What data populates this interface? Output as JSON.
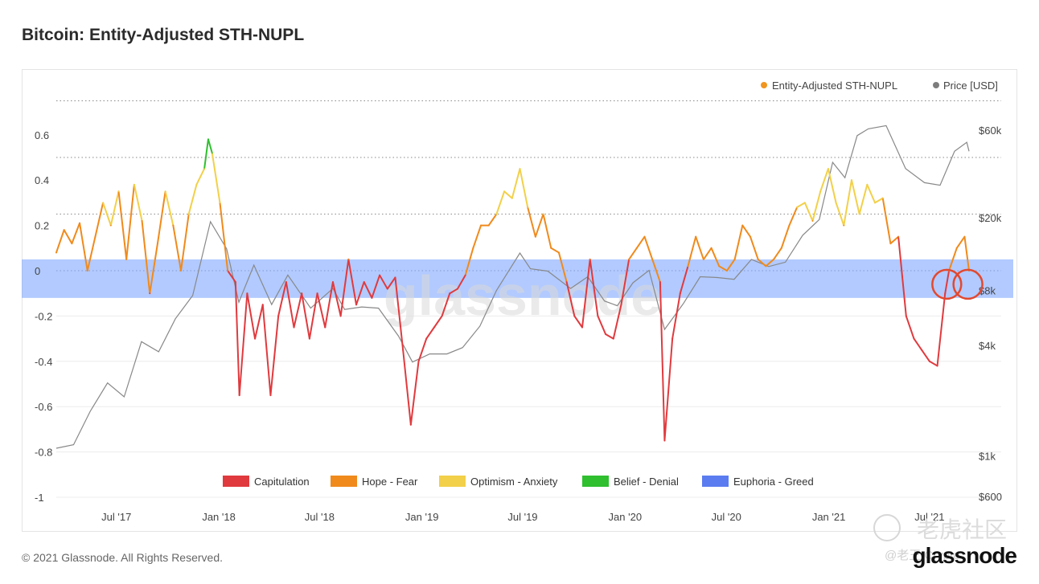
{
  "header": {
    "title": "Bitcoin: Entity-Adjusted STH-NUPL"
  },
  "footer": {
    "copyright": "© 2021 Glassnode. All Rights Reserved.",
    "brand": "glassnode"
  },
  "watermark": {
    "text": "glassnode",
    "overlay_cn": "老虎社区",
    "overlay_handle": "@老王 Crypto"
  },
  "colors": {
    "capitulation": "#e03a3e",
    "hope_fear": "#f08a1c",
    "optimism_anxiety": "#f2d049",
    "belief_denial": "#2fbf2f",
    "euphoria_band": "#7ea6ff",
    "price": "#888888",
    "legend_nupl_dot": "#f0951f",
    "legend_price_dot": "#7d7d7d",
    "annotation_circle": "#e2492f"
  },
  "chart_data": {
    "type": "line",
    "title": "Bitcoin: Entity-Adjusted STH-NUPL",
    "x_ticks": [
      "Jul '17",
      "Jan '18",
      "Jul '18",
      "Jan '19",
      "Jul '19",
      "Jan '20",
      "Jul '20",
      "Jan '21",
      "Jul '21"
    ],
    "y_left": {
      "ticks": [
        "0.6",
        "0.4",
        "0.2",
        "0",
        "-0.2",
        "-0.4",
        "-0.6",
        "-0.8",
        "-1"
      ],
      "range": [
        -1,
        0.7
      ]
    },
    "y_right": {
      "ticks": [
        "$60k",
        "$20k",
        "$8k",
        "$4k",
        "$1k",
        "$600"
      ],
      "scale": "log"
    },
    "top_legend": [
      {
        "label": "Entity-Adjusted STH-NUPL",
        "color": "#f0951f"
      },
      {
        "label": "Price [USD]",
        "color": "#7d7d7d"
      }
    ],
    "zone_legend": [
      {
        "label": "Capitulation",
        "color": "#e03a3e"
      },
      {
        "label": "Hope - Fear",
        "color": "#f08a1c"
      },
      {
        "label": "Optimism - Anxiety",
        "color": "#f2d049"
      },
      {
        "label": "Belief - Denial",
        "color": "#2fbf2f"
      },
      {
        "label": "Euphoria - Greed",
        "color": "#5b7cf0"
      }
    ],
    "zones": [
      {
        "name": "Capitulation",
        "from": -1,
        "to": 0
      },
      {
        "name": "Hope - Fear",
        "from": 0,
        "to": 0.25
      },
      {
        "name": "Optimism - Anxiety",
        "from": 0.25,
        "to": 0.5
      },
      {
        "name": "Belief - Denial",
        "from": 0.5,
        "to": 0.75
      }
    ],
    "euphoria_band": [
      -0.12,
      0.05
    ],
    "x_range": [
      "2017-03-15",
      "2021-09-10"
    ],
    "series": [
      {
        "name": "Entity-Adjusted STH-NUPL",
        "points": [
          [
            "2017-03-15",
            0.08
          ],
          [
            "2017-03-29",
            0.18
          ],
          [
            "2017-04-12",
            0.12
          ],
          [
            "2017-04-26",
            0.21
          ],
          [
            "2017-05-10",
            0.0
          ],
          [
            "2017-05-24",
            0.15
          ],
          [
            "2017-06-07",
            0.3
          ],
          [
            "2017-06-21",
            0.2
          ],
          [
            "2017-07-05",
            0.35
          ],
          [
            "2017-07-19",
            0.05
          ],
          [
            "2017-08-02",
            0.38
          ],
          [
            "2017-08-16",
            0.22
          ],
          [
            "2017-08-30",
            -0.1
          ],
          [
            "2017-09-13",
            0.12
          ],
          [
            "2017-09-27",
            0.35
          ],
          [
            "2017-10-11",
            0.2
          ],
          [
            "2017-10-25",
            0.0
          ],
          [
            "2017-11-08",
            0.25
          ],
          [
            "2017-11-22",
            0.38
          ],
          [
            "2017-12-06",
            0.45
          ],
          [
            "2017-12-13",
            0.58
          ],
          [
            "2017-12-20",
            0.52
          ],
          [
            "2018-01-03",
            0.3
          ],
          [
            "2018-01-17",
            0.0
          ],
          [
            "2018-01-31",
            -0.05
          ],
          [
            "2018-02-07",
            -0.55
          ],
          [
            "2018-02-21",
            -0.1
          ],
          [
            "2018-03-07",
            -0.3
          ],
          [
            "2018-03-21",
            -0.15
          ],
          [
            "2018-04-04",
            -0.55
          ],
          [
            "2018-04-18",
            -0.2
          ],
          [
            "2018-05-02",
            -0.05
          ],
          [
            "2018-05-16",
            -0.25
          ],
          [
            "2018-05-30",
            -0.1
          ],
          [
            "2018-06-13",
            -0.3
          ],
          [
            "2018-06-27",
            -0.1
          ],
          [
            "2018-07-11",
            -0.25
          ],
          [
            "2018-07-25",
            -0.05
          ],
          [
            "2018-08-08",
            -0.2
          ],
          [
            "2018-08-22",
            0.05
          ],
          [
            "2018-09-05",
            -0.15
          ],
          [
            "2018-09-19",
            -0.05
          ],
          [
            "2018-10-03",
            -0.12
          ],
          [
            "2018-10-17",
            -0.02
          ],
          [
            "2018-10-31",
            -0.08
          ],
          [
            "2018-11-14",
            -0.03
          ],
          [
            "2018-11-28",
            -0.35
          ],
          [
            "2018-12-12",
            -0.68
          ],
          [
            "2018-12-26",
            -0.4
          ],
          [
            "2019-01-09",
            -0.3
          ],
          [
            "2019-01-23",
            -0.25
          ],
          [
            "2019-02-06",
            -0.2
          ],
          [
            "2019-02-20",
            -0.1
          ],
          [
            "2019-03-06",
            -0.08
          ],
          [
            "2019-03-20",
            -0.02
          ],
          [
            "2019-04-03",
            0.1
          ],
          [
            "2019-04-17",
            0.2
          ],
          [
            "2019-05-01",
            0.2
          ],
          [
            "2019-05-15",
            0.25
          ],
          [
            "2019-05-29",
            0.35
          ],
          [
            "2019-06-12",
            0.32
          ],
          [
            "2019-06-26",
            0.45
          ],
          [
            "2019-07-10",
            0.28
          ],
          [
            "2019-07-24",
            0.15
          ],
          [
            "2019-08-07",
            0.25
          ],
          [
            "2019-08-21",
            0.1
          ],
          [
            "2019-09-04",
            0.08
          ],
          [
            "2019-09-18",
            -0.05
          ],
          [
            "2019-10-02",
            -0.2
          ],
          [
            "2019-10-16",
            -0.25
          ],
          [
            "2019-10-30",
            0.05
          ],
          [
            "2019-11-13",
            -0.2
          ],
          [
            "2019-11-27",
            -0.28
          ],
          [
            "2019-12-11",
            -0.3
          ],
          [
            "2019-12-25",
            -0.15
          ],
          [
            "2020-01-08",
            0.05
          ],
          [
            "2020-01-22",
            0.1
          ],
          [
            "2020-02-05",
            0.15
          ],
          [
            "2020-02-19",
            0.05
          ],
          [
            "2020-03-04",
            -0.05
          ],
          [
            "2020-03-12",
            -0.75
          ],
          [
            "2020-03-26",
            -0.3
          ],
          [
            "2020-04-09",
            -0.1
          ],
          [
            "2020-04-23",
            0.02
          ],
          [
            "2020-05-07",
            0.15
          ],
          [
            "2020-05-21",
            0.05
          ],
          [
            "2020-06-04",
            0.1
          ],
          [
            "2020-06-18",
            0.02
          ],
          [
            "2020-07-02",
            0.0
          ],
          [
            "2020-07-16",
            0.05
          ],
          [
            "2020-07-30",
            0.2
          ],
          [
            "2020-08-13",
            0.15
          ],
          [
            "2020-08-27",
            0.05
          ],
          [
            "2020-09-10",
            0.02
          ],
          [
            "2020-09-24",
            0.05
          ],
          [
            "2020-10-08",
            0.1
          ],
          [
            "2020-10-22",
            0.2
          ],
          [
            "2020-11-05",
            0.28
          ],
          [
            "2020-11-19",
            0.3
          ],
          [
            "2020-12-03",
            0.22
          ],
          [
            "2020-12-17",
            0.35
          ],
          [
            "2020-12-31",
            0.45
          ],
          [
            "2021-01-14",
            0.3
          ],
          [
            "2021-01-28",
            0.2
          ],
          [
            "2021-02-11",
            0.4
          ],
          [
            "2021-02-25",
            0.25
          ],
          [
            "2021-03-11",
            0.38
          ],
          [
            "2021-03-25",
            0.3
          ],
          [
            "2021-04-08",
            0.32
          ],
          [
            "2021-04-22",
            0.12
          ],
          [
            "2021-05-06",
            0.15
          ],
          [
            "2021-05-20",
            -0.2
          ],
          [
            "2021-06-03",
            -0.3
          ],
          [
            "2021-06-17",
            -0.35
          ],
          [
            "2021-07-01",
            -0.4
          ],
          [
            "2021-07-15",
            -0.42
          ],
          [
            "2021-07-29",
            -0.1
          ],
          [
            "2021-08-05",
            0.0
          ],
          [
            "2021-08-19",
            0.1
          ],
          [
            "2021-09-02",
            0.15
          ],
          [
            "2021-09-10",
            0.0
          ]
        ]
      },
      {
        "name": "Price [USD]",
        "points": [
          [
            "2017-03-15",
            1100
          ],
          [
            "2017-04-15",
            1150
          ],
          [
            "2017-05-15",
            1750
          ],
          [
            "2017-06-15",
            2500
          ],
          [
            "2017-07-15",
            2100
          ],
          [
            "2017-08-15",
            4200
          ],
          [
            "2017-09-15",
            3700
          ],
          [
            "2017-10-15",
            5600
          ],
          [
            "2017-11-15",
            7500
          ],
          [
            "2017-12-17",
            19000
          ],
          [
            "2018-01-15",
            13500
          ],
          [
            "2018-02-06",
            6900
          ],
          [
            "2018-03-05",
            11000
          ],
          [
            "2018-04-06",
            6700
          ],
          [
            "2018-05-05",
            9700
          ],
          [
            "2018-06-15",
            6400
          ],
          [
            "2018-07-25",
            8200
          ],
          [
            "2018-08-15",
            6300
          ],
          [
            "2018-09-15",
            6500
          ],
          [
            "2018-10-15",
            6400
          ],
          [
            "2018-11-20",
            4500
          ],
          [
            "2018-12-15",
            3250
          ],
          [
            "2019-01-15",
            3600
          ],
          [
            "2019-02-15",
            3600
          ],
          [
            "2019-03-15",
            3900
          ],
          [
            "2019-04-15",
            5100
          ],
          [
            "2019-05-15",
            8000
          ],
          [
            "2019-06-26",
            12800
          ],
          [
            "2019-07-15",
            10500
          ],
          [
            "2019-08-15",
            10200
          ],
          [
            "2019-09-25",
            8200
          ],
          [
            "2019-10-26",
            9500
          ],
          [
            "2019-11-25",
            7000
          ],
          [
            "2019-12-18",
            6600
          ],
          [
            "2020-01-15",
            8800
          ],
          [
            "2020-02-13",
            10300
          ],
          [
            "2020-03-12",
            4900
          ],
          [
            "2020-04-15",
            6800
          ],
          [
            "2020-05-15",
            9500
          ],
          [
            "2020-06-15",
            9400
          ],
          [
            "2020-07-15",
            9200
          ],
          [
            "2020-08-15",
            11800
          ],
          [
            "2020-09-15",
            10800
          ],
          [
            "2020-10-15",
            11400
          ],
          [
            "2020-11-15",
            16000
          ],
          [
            "2020-12-15",
            19500
          ],
          [
            "2021-01-08",
            40000
          ],
          [
            "2021-01-30",
            33000
          ],
          [
            "2021-02-21",
            56000
          ],
          [
            "2021-03-13",
            61000
          ],
          [
            "2021-04-14",
            63500
          ],
          [
            "2021-05-19",
            37000
          ],
          [
            "2021-06-22",
            31000
          ],
          [
            "2021-07-20",
            30000
          ],
          [
            "2021-08-15",
            46000
          ],
          [
            "2021-09-06",
            51500
          ],
          [
            "2021-09-10",
            46000
          ]
        ]
      }
    ],
    "annotations": [
      {
        "type": "circle",
        "x": "2021-08-01",
        "y": -0.06
      },
      {
        "type": "circle",
        "x": "2021-09-08",
        "y": -0.06
      }
    ]
  }
}
